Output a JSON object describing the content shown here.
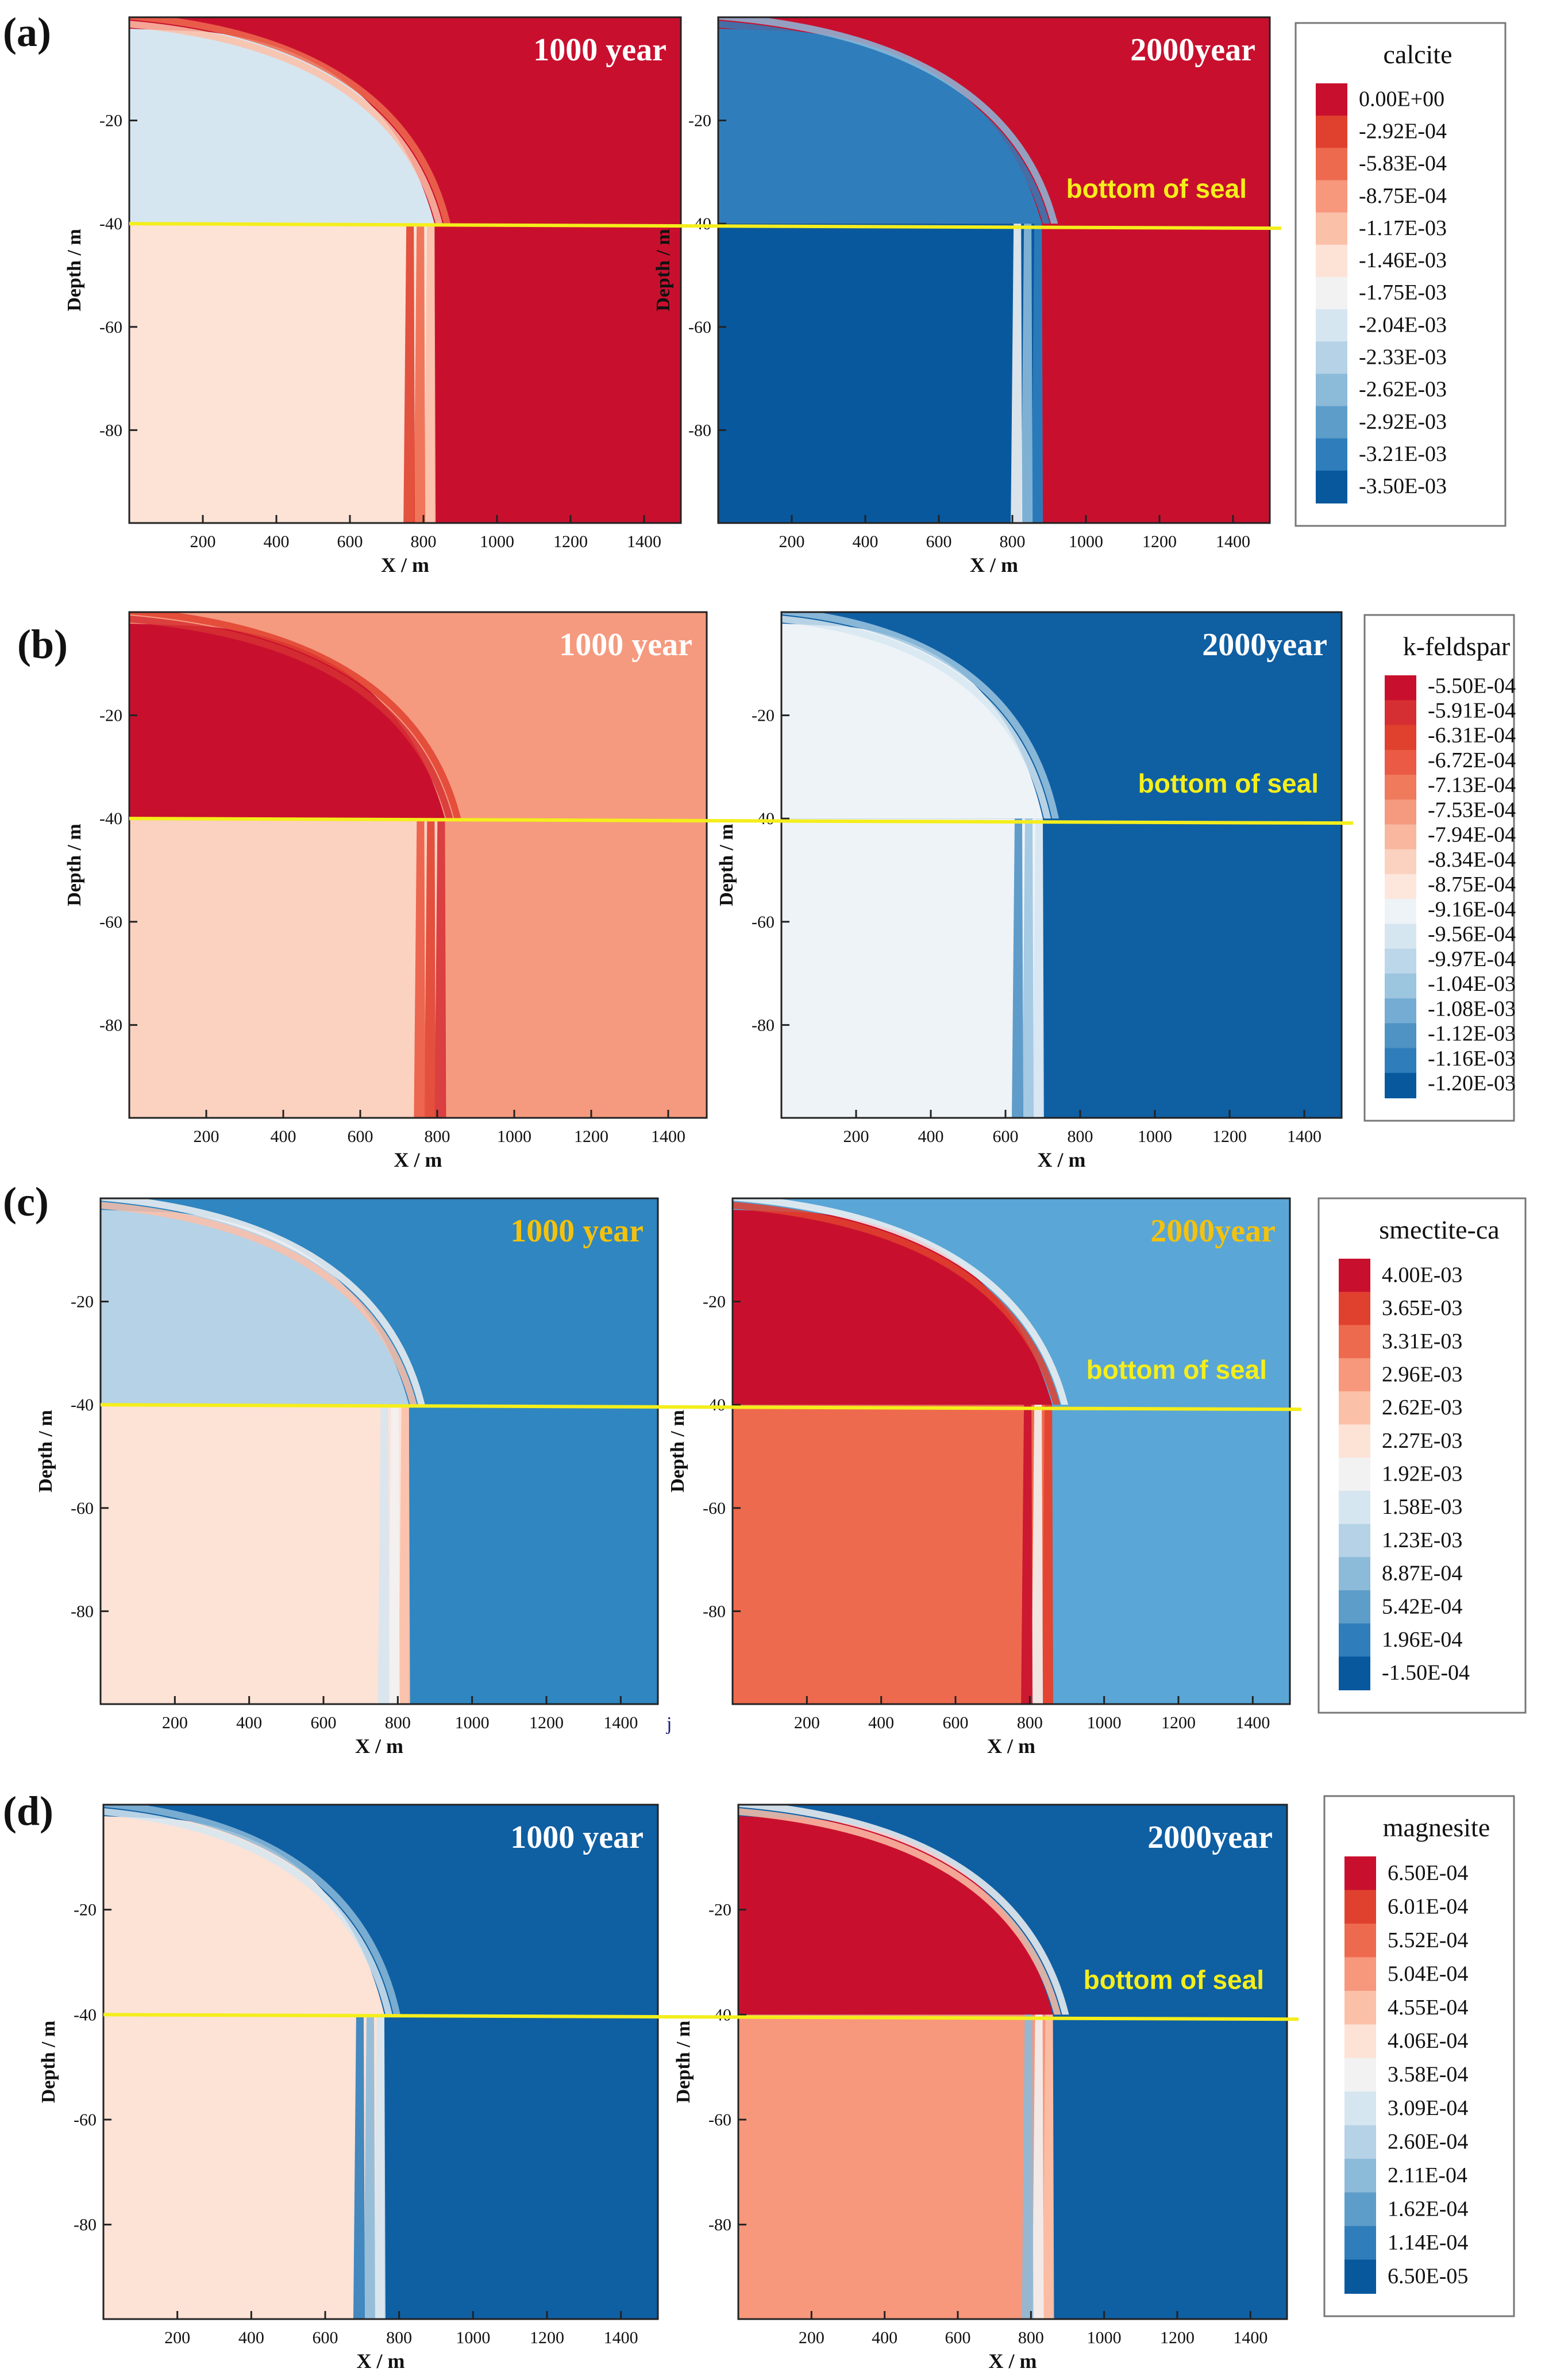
{
  "figure": {
    "seal_label": "bottom of seal",
    "seal_line_color": "#f4ee1c",
    "panel_frame_color": "#222222"
  },
  "chart_data": [
    {
      "type": "heatmap",
      "panel_label": "(a)",
      "mineral": "calcite",
      "legend_entries": [
        "0.00E+00",
        "-2.92E-04",
        "-5.83E-04",
        "-8.75E-04",
        "-1.17E-03",
        "-1.46E-03",
        "-1.75E-03",
        "-2.04E-03",
        "-2.33E-03",
        "-2.62E-03",
        "-2.92E-03",
        "-3.21E-03",
        "-3.50E-03"
      ],
      "legend_colors": [
        "#c8102e",
        "#e0412f",
        "#ee6a4e",
        "#f7977c",
        "#fbc0a8",
        "#fde2d6",
        "#f2f2f2",
        "#d6e6f1",
        "#b5d2e6",
        "#8cbad9",
        "#5d9dca",
        "#2f7ebb",
        "#08589e"
      ],
      "xlabel": "X / m",
      "ylabel": "Depth / m",
      "xlim": [
        0,
        1500
      ],
      "ylim": [
        -98,
        0
      ],
      "xticks": [
        "200",
        "400",
        "600",
        "800",
        "1000",
        "1200",
        "1400"
      ],
      "yticks": [
        "-20",
        "-40",
        "-60",
        "-80"
      ],
      "seal_depth": -40,
      "front_x": 830,
      "plots": [
        {
          "time_label": "1000 year",
          "title_color": "#ffffff",
          "seal_label_shown": false,
          "background": "#c8102e",
          "inner_fill": "#fde2d6",
          "band_colors": [
            "#fbc0a8",
            "#ee6a4e",
            "#e0412f"
          ],
          "upper_fill": "#d6e6f1",
          "front_x": 830
        },
        {
          "time_label": "2000year",
          "title_color": "#ffffff",
          "seal_label_shown": true,
          "background": "#c8102e",
          "inner_fill": "#08589e",
          "band_colors": [
            "#2f7ebb",
            "#8cbad9",
            "#f2f2f2"
          ],
          "upper_fill": "#2f7ebb",
          "front_x": 880
        }
      ]
    },
    {
      "type": "heatmap",
      "panel_label": "(b)",
      "mineral": "k-feldspar",
      "legend_entries": [
        "-5.50E-04",
        "-5.91E-04",
        "-6.31E-04",
        "-6.72E-04",
        "-7.13E-04",
        "-7.53E-04",
        "-7.94E-04",
        "-8.34E-04",
        "-8.75E-04",
        "-9.16E-04",
        "-9.56E-04",
        "-9.97E-04",
        "-1.04E-03",
        "-1.08E-03",
        "-1.12E-03",
        "-1.16E-03",
        "-1.20E-03"
      ],
      "legend_colors": [
        "#c8102e",
        "#d62f33",
        "#e0412f",
        "#ea5a44",
        "#ef7a5c",
        "#f59a7f",
        "#f9b79f",
        "#fbd1c0",
        "#fde7dc",
        "#eef3f7",
        "#d6e6f1",
        "#bcd7ea",
        "#9cc5e0",
        "#74acd3",
        "#4f92c4",
        "#2f7ebb",
        "#08589e"
      ],
      "xlabel": "X / m",
      "ylabel": "Depth / m",
      "xlim": [
        0,
        1500
      ],
      "ylim": [
        -98,
        0
      ],
      "xticks": [
        "200",
        "400",
        "600",
        "800",
        "1000",
        "1200",
        "1400"
      ],
      "yticks": [
        "-20",
        "-40",
        "-60",
        "-80"
      ],
      "seal_depth": -40,
      "plots": [
        {
          "time_label": "1000 year",
          "title_color": "#ffffff",
          "seal_label_shown": false,
          "background": "#f59a7f",
          "inner_fill": "#fbd1c0",
          "band_colors": [
            "#d62f33",
            "#e0412f",
            "#ea5a44"
          ],
          "upper_fill": "#c8102e",
          "front_x": 820
        },
        {
          "time_label": "2000year",
          "title_color": "#ffffff",
          "seal_label_shown": true,
          "background": "#0f5fa3",
          "inner_fill": "#eef3f7",
          "band_colors": [
            "#d6e6f1",
            "#9cc5e0",
            "#4f92c4"
          ],
          "upper_fill": "#eef3f7",
          "front_x": 700
        }
      ]
    },
    {
      "type": "heatmap",
      "panel_label": "(c)",
      "mineral": "smectite-ca",
      "legend_entries": [
        "4.00E-03",
        "3.65E-03",
        "3.31E-03",
        "2.96E-03",
        "2.62E-03",
        "2.27E-03",
        "1.92E-03",
        "1.58E-03",
        "1.23E-03",
        "8.87E-04",
        "5.42E-04",
        "1.96E-04",
        "-1.50E-04"
      ],
      "legend_colors": [
        "#c8102e",
        "#e0412f",
        "#ee6a4e",
        "#f7977c",
        "#fbc0a8",
        "#fde2d6",
        "#f2f2f2",
        "#d6e6f1",
        "#b5d2e6",
        "#8cbad9",
        "#5d9dca",
        "#2f7ebb",
        "#08589e"
      ],
      "xlabel": "X / m",
      "ylabel": "Depth / m",
      "xlim": [
        0,
        1500
      ],
      "ylim": [
        -98,
        0
      ],
      "xticks": [
        "200",
        "400",
        "600",
        "800",
        "1000",
        "1200",
        "1400"
      ],
      "yticks": [
        "-20",
        "-40",
        "-60",
        "-80"
      ],
      "seal_depth": -40,
      "stray_mark": "j",
      "plots": [
        {
          "time_label": "1000 year",
          "title_color": "#f4c20d",
          "seal_label_shown": false,
          "background": "#2f86c0",
          "inner_fill": "#fde2d6",
          "band_colors": [
            "#fbc0a8",
            "#f2f2f2",
            "#d6e6f1"
          ],
          "upper_fill": "#b5d2e6",
          "front_x": 830
        },
        {
          "time_label": "2000year",
          "title_color": "#f4c20d",
          "seal_label_shown": true,
          "background": "#5aa6d6",
          "inner_fill": "#ee6a4e",
          "band_colors": [
            "#e0412f",
            "#f2f2f2",
            "#c8102e"
          ],
          "upper_fill": "#c8102e",
          "front_x": 860
        }
      ]
    },
    {
      "type": "heatmap",
      "panel_label": "(d)",
      "mineral": "magnesite",
      "legend_entries": [
        "6.50E-04",
        "6.01E-04",
        "5.52E-04",
        "5.04E-04",
        "4.55E-04",
        "4.06E-04",
        "3.58E-04",
        "3.09E-04",
        "2.60E-04",
        "2.11E-04",
        "1.62E-04",
        "1.14E-04",
        "6.50E-05"
      ],
      "legend_colors": [
        "#c8102e",
        "#e0412f",
        "#ee6a4e",
        "#f7977c",
        "#fbc0a8",
        "#fde2d6",
        "#f2f2f2",
        "#d6e6f1",
        "#b5d2e6",
        "#8cbad9",
        "#5d9dca",
        "#2f7ebb",
        "#08589e"
      ],
      "xlabel": "X / m",
      "ylabel": "Depth / m",
      "xlim": [
        0,
        1500
      ],
      "ylim": [
        -98,
        0
      ],
      "xticks": [
        "200",
        "400",
        "600",
        "800",
        "1000",
        "1200",
        "1400"
      ],
      "yticks": [
        "-20",
        "-40",
        "-60",
        "-80"
      ],
      "seal_depth": -40,
      "plots": [
        {
          "time_label": "1000 year",
          "title_color": "#ffffff",
          "seal_label_shown": false,
          "background": "#0f5fa3",
          "inner_fill": "#fde2d6",
          "band_colors": [
            "#d6e6f1",
            "#8cbad9",
            "#2f7ebb"
          ],
          "upper_fill": "#fde2d6",
          "front_x": 760
        },
        {
          "time_label": "2000year",
          "title_color": "#ffffff",
          "seal_label_shown": true,
          "background": "#0f5fa3",
          "inner_fill": "#f7977c",
          "band_colors": [
            "#fbc0a8",
            "#f2f2f2",
            "#8cbad9"
          ],
          "upper_fill": "#c8102e",
          "front_x": 860
        }
      ]
    }
  ]
}
